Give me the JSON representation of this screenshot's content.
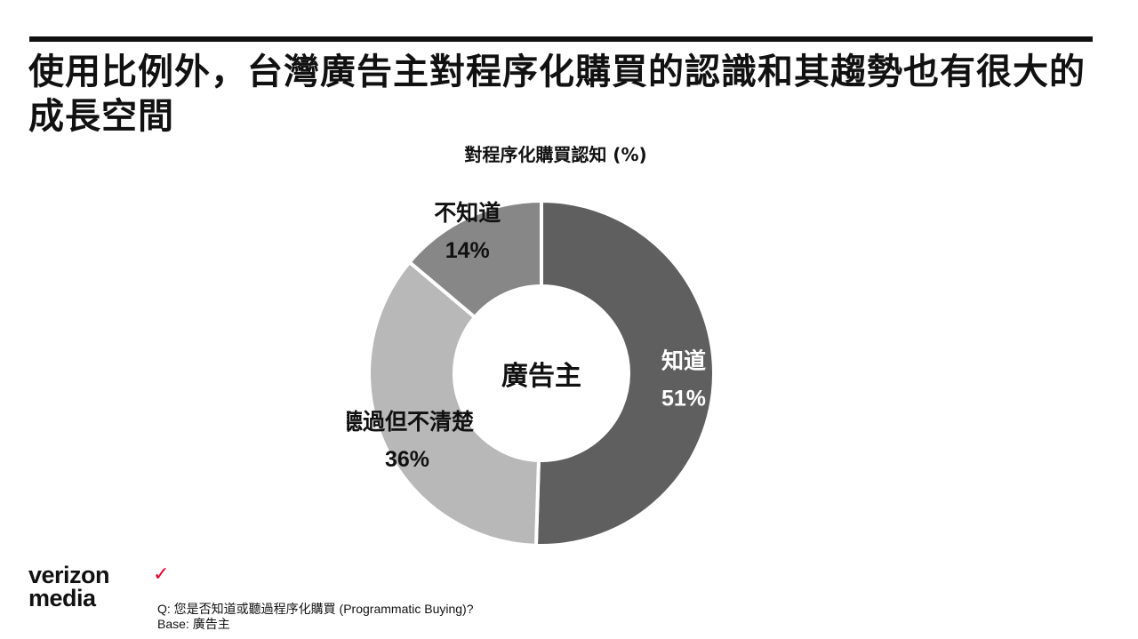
{
  "slide": {
    "title": "使用比例外，台灣廣告主對程序化購買的認識和其趨勢也有很大的成長空間"
  },
  "chart_data": {
    "type": "pie",
    "variant": "donut",
    "title": "對程序化購買認知 (%)",
    "center_label": "廣告主",
    "slices": [
      {
        "label": "知道",
        "value": 51,
        "value_text": "51%",
        "color": "#5f5f5f"
      },
      {
        "label": "聽過但不清楚",
        "value": 36,
        "value_text": "36%",
        "color": "#b8b8b8"
      },
      {
        "label": "不知道",
        "value": 14,
        "value_text": "14%",
        "color": "#878787"
      }
    ]
  },
  "footer": {
    "logo_line1": "verizon",
    "logo_line2": "media",
    "logo_accent": "#e4002b",
    "question": "Q: 您是否知道或聽過程序化購買 (Programmatic Buying)?",
    "base": "Base: 廣告主"
  }
}
